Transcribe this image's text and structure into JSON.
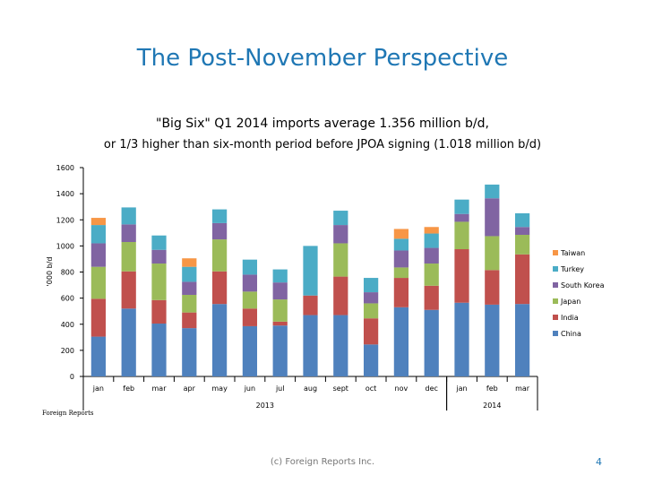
{
  "slide": {
    "title": "The Post-November Perspective",
    "footer": "(c) Foreign Reports Inc.",
    "page_number": "4",
    "source": "Foreign Reports"
  },
  "chart_data": {
    "type": "bar",
    "stacked": true,
    "title": "\"Big Six\" Q1 2014 imports average 1.356 million b/d,",
    "subtitle": "or 1/3 higher than six-month period before JPOA signing (1.018 million b/d)",
    "ylabel": "'000 b/d",
    "xlabel": "",
    "ylim": [
      0,
      1600
    ],
    "yticks": [
      0,
      200,
      400,
      600,
      800,
      1000,
      1200,
      1400,
      1600
    ],
    "categories": [
      "jan",
      "feb",
      "mar",
      "apr",
      "may",
      "jun",
      "jul",
      "aug",
      "sept",
      "oct",
      "nov",
      "dec",
      "jan",
      "feb",
      "mar"
    ],
    "year_groups": [
      {
        "label": "2013",
        "from": 0,
        "to": 11
      },
      {
        "label": "2014",
        "from": 12,
        "to": 14
      }
    ],
    "series": [
      {
        "name": "China",
        "color": "#4f81bd",
        "values": [
          305,
          520,
          405,
          370,
          555,
          385,
          390,
          470,
          470,
          245,
          530,
          510,
          565,
          550,
          555
        ]
      },
      {
        "name": "India",
        "color": "#c0504d",
        "values": [
          290,
          285,
          180,
          120,
          250,
          135,
          30,
          150,
          295,
          200,
          225,
          185,
          410,
          265,
          380
        ]
      },
      {
        "name": "Japan",
        "color": "#9bbb59",
        "values": [
          245,
          225,
          280,
          135,
          245,
          130,
          170,
          0,
          255,
          115,
          80,
          170,
          210,
          260,
          150
        ]
      },
      {
        "name": "South Korea",
        "color": "#8064a2",
        "values": [
          180,
          135,
          105,
          100,
          125,
          130,
          130,
          0,
          140,
          85,
          130,
          120,
          60,
          290,
          60
        ]
      },
      {
        "name": "Turkey",
        "color": "#4bacc6",
        "values": [
          140,
          130,
          110,
          115,
          105,
          115,
          100,
          380,
          110,
          110,
          90,
          110,
          110,
          105,
          105
        ]
      },
      {
        "name": "Taiwan",
        "color": "#f79646",
        "values": [
          55,
          0,
          0,
          65,
          0,
          0,
          0,
          0,
          0,
          0,
          75,
          50,
          0,
          0,
          0
        ]
      }
    ],
    "legend_position": "right",
    "grid": false
  }
}
